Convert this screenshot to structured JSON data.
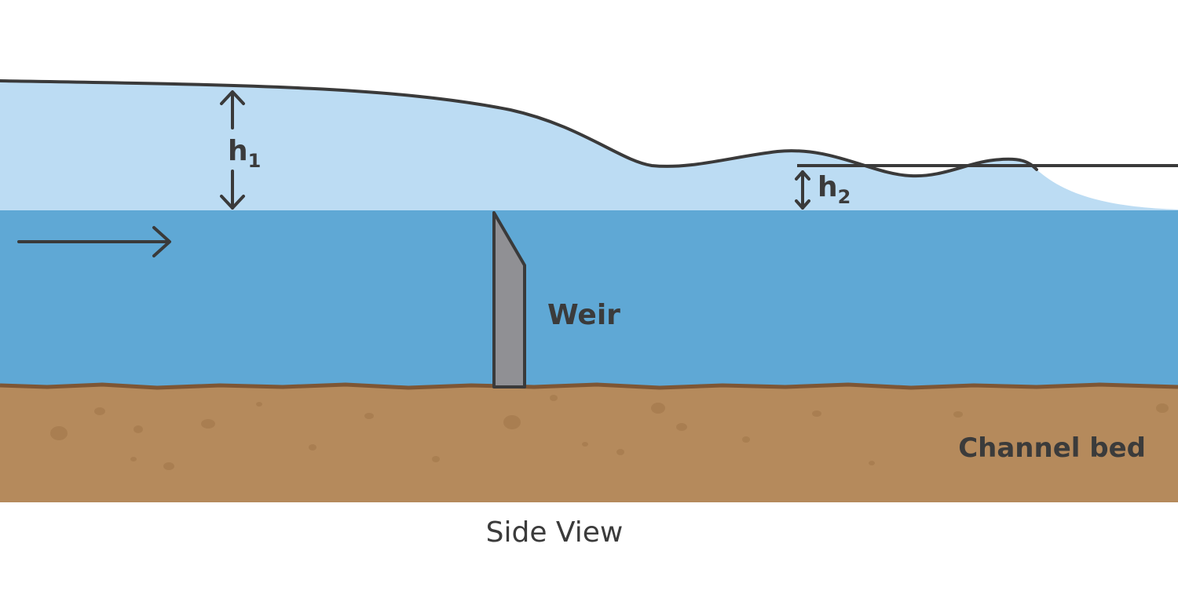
{
  "colors": {
    "surge_water": "#bcdcf3",
    "deep_water": "#5fa8d5",
    "channel_bed": "#b58a5c",
    "bed_edge": "#7e5634",
    "weir_fill": "#909094",
    "outline": "#3a3a3a"
  },
  "labels": {
    "h1_base": "h",
    "h1_sub": "1",
    "h2_base": "h",
    "h2_sub": "2",
    "weir": "Weir",
    "channel_bed": "Channel bed",
    "caption": "Side View"
  },
  "icons": {
    "flow_arrow": "right-arrow-icon",
    "h1_arrow": "double-headed-vertical-arrow-icon",
    "h2_arrow": "double-headed-vertical-arrow-icon"
  }
}
